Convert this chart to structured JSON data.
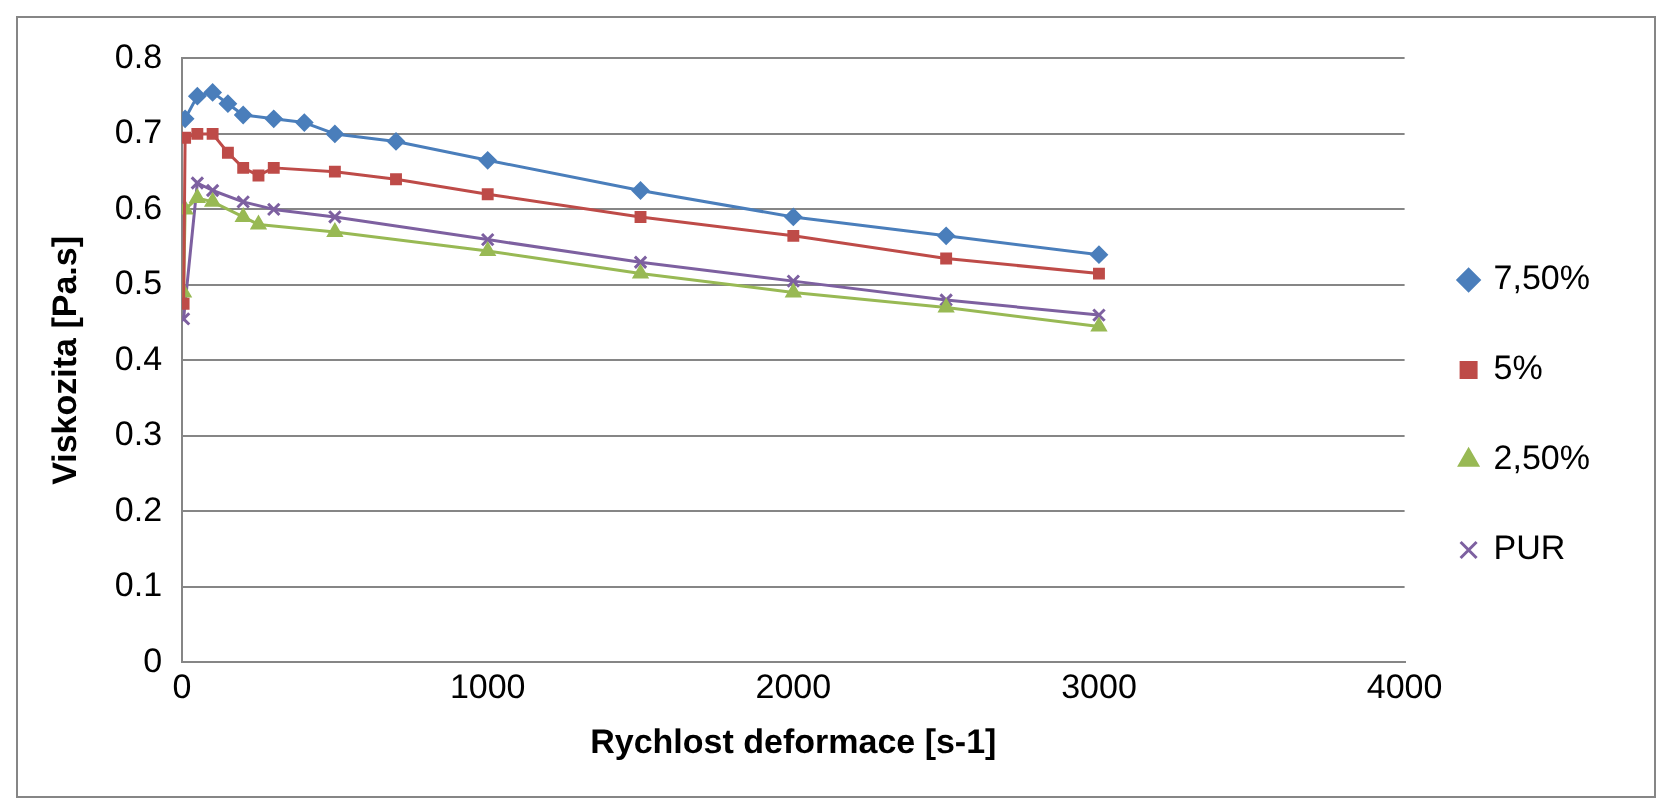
{
  "chart_data": {
    "type": "line",
    "xlabel": "Rychlost deformace [s-1]",
    "ylabel": "Viskozita [Pa.s]",
    "xlim": [
      0,
      4000
    ],
    "xticks": [
      0,
      1000,
      2000,
      3000,
      4000
    ],
    "ylim": [
      0,
      0.8
    ],
    "yticks": [
      0,
      0.1,
      0.2,
      0.3,
      0.4,
      0.5,
      0.6,
      0.7,
      0.8
    ],
    "grid": "y",
    "legend": "right",
    "series": [
      {
        "name": "7,50%",
        "color": "#4a7ebb",
        "marker": "diamond",
        "x": [
          10,
          50,
          100,
          150,
          200,
          300,
          400,
          500,
          700,
          1000,
          1500,
          2000,
          2500,
          3000
        ],
        "values": [
          0.72,
          0.75,
          0.755,
          0.74,
          0.725,
          0.72,
          0.715,
          0.7,
          0.69,
          0.665,
          0.625,
          0.59,
          0.565,
          0.54
        ]
      },
      {
        "name": "5%",
        "color": "#be4b48",
        "marker": "square",
        "x": [
          5,
          10,
          50,
          100,
          150,
          200,
          250,
          300,
          500,
          700,
          1000,
          1500,
          2000,
          2500,
          3000
        ],
        "values": [
          0.475,
          0.695,
          0.7,
          0.7,
          0.675,
          0.655,
          0.645,
          0.655,
          0.65,
          0.64,
          0.62,
          0.59,
          0.565,
          0.535,
          0.515
        ]
      },
      {
        "name": "2,50%",
        "color": "#98b954",
        "marker": "triangle",
        "x": [
          5,
          10,
          50,
          100,
          200,
          250,
          500,
          1000,
          1500,
          2000,
          2500,
          3000
        ],
        "values": [
          0.49,
          0.6,
          0.615,
          0.61,
          0.59,
          0.58,
          0.57,
          0.545,
          0.515,
          0.49,
          0.47,
          0.445
        ]
      },
      {
        "name": "PUR",
        "color": "#7d60a0",
        "marker": "cross",
        "x": [
          5,
          50,
          100,
          200,
          300,
          500,
          1000,
          1500,
          2000,
          2500,
          3000
        ],
        "values": [
          0.455,
          0.635,
          0.625,
          0.61,
          0.6,
          0.59,
          0.56,
          0.53,
          0.505,
          0.48,
          0.46
        ]
      }
    ]
  }
}
